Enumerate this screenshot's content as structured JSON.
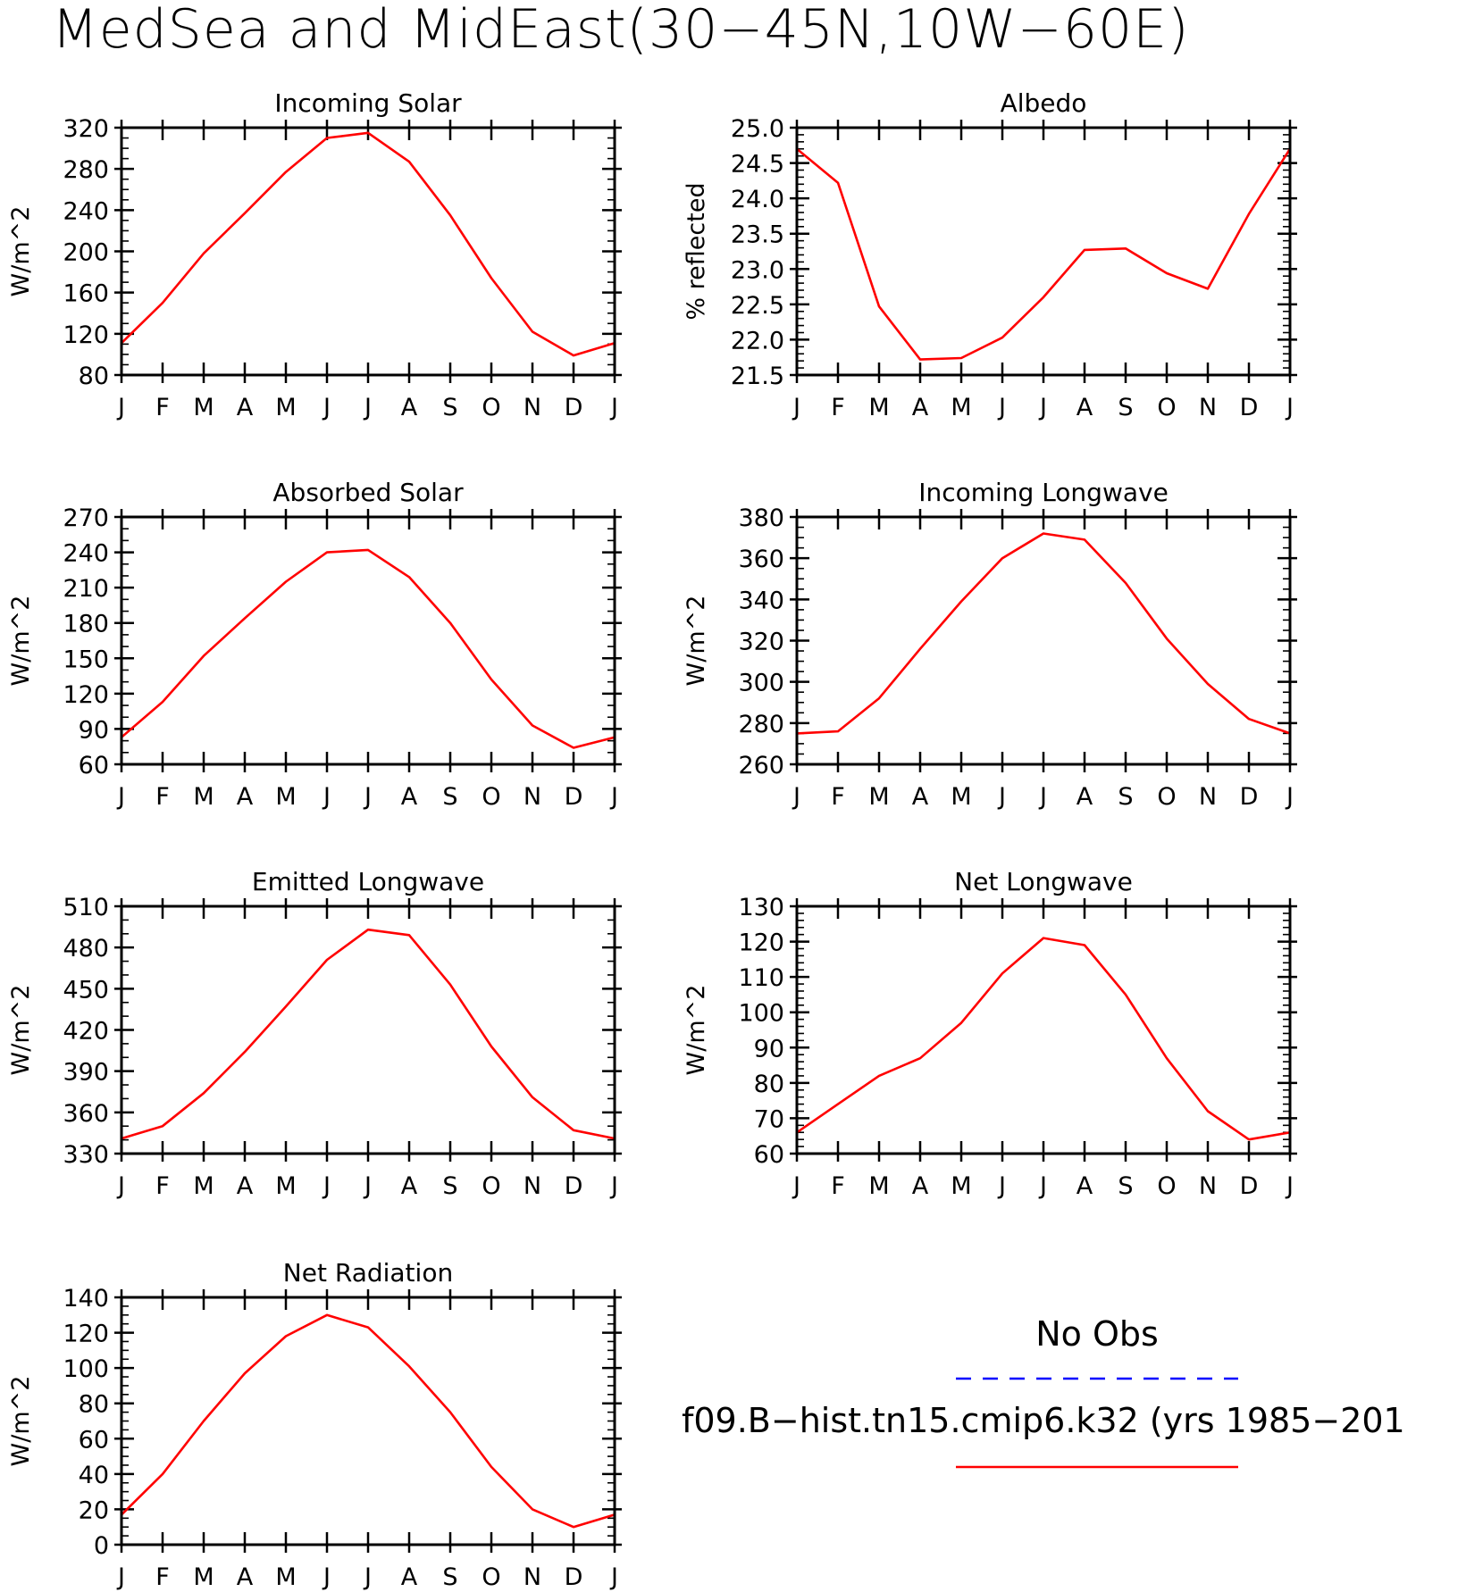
{
  "title": "MedSea and MidEast(30−45N,10W−60E)",
  "colors": {
    "model": "#ff0000",
    "obs": "#0000ff"
  },
  "legend": {
    "obs_label": "No Obs",
    "model_label": "f09.B−hist.tn15.cmip6.k32 (yrs 1985−201"
  },
  "chart_data": [
    {
      "type": "line",
      "title": "Incoming Solar",
      "ylabel": "W/m^2",
      "ylim": [
        80,
        320
      ],
      "yticks": [
        80,
        120,
        160,
        200,
        240,
        280,
        320
      ],
      "ytick_labels": [
        "80",
        "120",
        "160",
        "200",
        "240",
        "280",
        "320"
      ],
      "y_minor_step": 10,
      "x_tick_labels": [
        "J",
        "F",
        "M",
        "A",
        "M",
        "J",
        "J",
        "A",
        "S",
        "O",
        "N",
        "D",
        "J"
      ],
      "series": [
        {
          "values": [
            111,
            150,
            198,
            237,
            277,
            310,
            315,
            287,
            235,
            174,
            122,
            99,
            111
          ]
        }
      ]
    },
    {
      "type": "line",
      "title": "Albedo",
      "ylabel": "% reflected",
      "ylim": [
        21.5,
        25.0
      ],
      "yticks": [
        21.5,
        22.0,
        22.5,
        23.0,
        23.5,
        24.0,
        24.5,
        25.0
      ],
      "ytick_labels": [
        "21.5",
        "22.0",
        "22.5",
        "23.0",
        "23.5",
        "24.0",
        "24.5",
        "25.0"
      ],
      "y_minor_step": 0.1,
      "x_tick_labels": [
        "J",
        "F",
        "M",
        "A",
        "M",
        "J",
        "J",
        "A",
        "S",
        "O",
        "N",
        "D",
        "J"
      ],
      "series": [
        {
          "values": [
            24.7,
            24.22,
            22.47,
            21.72,
            21.74,
            22.03,
            22.6,
            23.27,
            23.29,
            22.94,
            22.72,
            23.78,
            24.7
          ]
        }
      ]
    },
    {
      "type": "line",
      "title": "Absorbed Solar",
      "ylabel": "W/m^2",
      "ylim": [
        60,
        270
      ],
      "yticks": [
        60,
        90,
        120,
        150,
        180,
        210,
        240,
        270
      ],
      "ytick_labels": [
        "60",
        "90",
        "120",
        "150",
        "180",
        "210",
        "240",
        "270"
      ],
      "y_minor_step": 10,
      "x_tick_labels": [
        "J",
        "F",
        "M",
        "A",
        "M",
        "J",
        "J",
        "A",
        "S",
        "O",
        "N",
        "D",
        "J"
      ],
      "series": [
        {
          "values": [
            83,
            113,
            152,
            184,
            215,
            240,
            242,
            219,
            180,
            132,
            93,
            74,
            83
          ]
        }
      ]
    },
    {
      "type": "line",
      "title": "Incoming Longwave",
      "ylabel": "W/m^2",
      "ylim": [
        260,
        380
      ],
      "yticks": [
        260,
        280,
        300,
        320,
        340,
        360,
        380
      ],
      "ytick_labels": [
        "260",
        "280",
        "300",
        "320",
        "340",
        "360",
        "380"
      ],
      "y_minor_step": 5,
      "x_tick_labels": [
        "J",
        "F",
        "M",
        "A",
        "M",
        "J",
        "J",
        "A",
        "S",
        "O",
        "N",
        "D",
        "J"
      ],
      "series": [
        {
          "values": [
            275,
            276,
            292,
            316,
            339,
            360,
            372,
            369,
            348,
            321,
            299,
            282,
            275
          ]
        }
      ]
    },
    {
      "type": "line",
      "title": "Emitted Longwave",
      "ylabel": "W/m^2",
      "ylim": [
        330,
        510
      ],
      "yticks": [
        330,
        360,
        390,
        420,
        450,
        480,
        510
      ],
      "ytick_labels": [
        "330",
        "360",
        "390",
        "420",
        "450",
        "480",
        "510"
      ],
      "y_minor_step": 10,
      "x_tick_labels": [
        "J",
        "F",
        "M",
        "A",
        "M",
        "J",
        "J",
        "A",
        "S",
        "O",
        "N",
        "D",
        "J"
      ],
      "series": [
        {
          "values": [
            341,
            350,
            374,
            404,
            437,
            471,
            493,
            489,
            453,
            408,
            371,
            347,
            341
          ]
        }
      ]
    },
    {
      "type": "line",
      "title": "Net Longwave",
      "ylabel": "W/m^2",
      "ylim": [
        60,
        130
      ],
      "yticks": [
        60,
        70,
        80,
        90,
        100,
        110,
        120,
        130
      ],
      "ytick_labels": [
        "60",
        "70",
        "80",
        "90",
        "100",
        "110",
        "120",
        "130"
      ],
      "y_minor_step": 2,
      "x_tick_labels": [
        "J",
        "F",
        "M",
        "A",
        "M",
        "J",
        "J",
        "A",
        "S",
        "O",
        "N",
        "D",
        "J"
      ],
      "series": [
        {
          "values": [
            66,
            74,
            82,
            87,
            97,
            111,
            121,
            119,
            105,
            87,
            72,
            64,
            66
          ]
        }
      ]
    },
    {
      "type": "line",
      "title": "Net Radiation",
      "ylabel": "W/m^2",
      "ylim": [
        0,
        140
      ],
      "yticks": [
        0,
        20,
        40,
        60,
        80,
        100,
        120,
        140
      ],
      "ytick_labels": [
        "0",
        "20",
        "40",
        "60",
        "80",
        "100",
        "120",
        "140"
      ],
      "y_minor_step": 5,
      "x_tick_labels": [
        "J",
        "F",
        "M",
        "A",
        "M",
        "J",
        "J",
        "A",
        "S",
        "O",
        "N",
        "D",
        "J"
      ],
      "series": [
        {
          "values": [
            17,
            40,
            70,
            97,
            118,
            130,
            123,
            101,
            75,
            44,
            20,
            10,
            17
          ]
        }
      ]
    }
  ]
}
